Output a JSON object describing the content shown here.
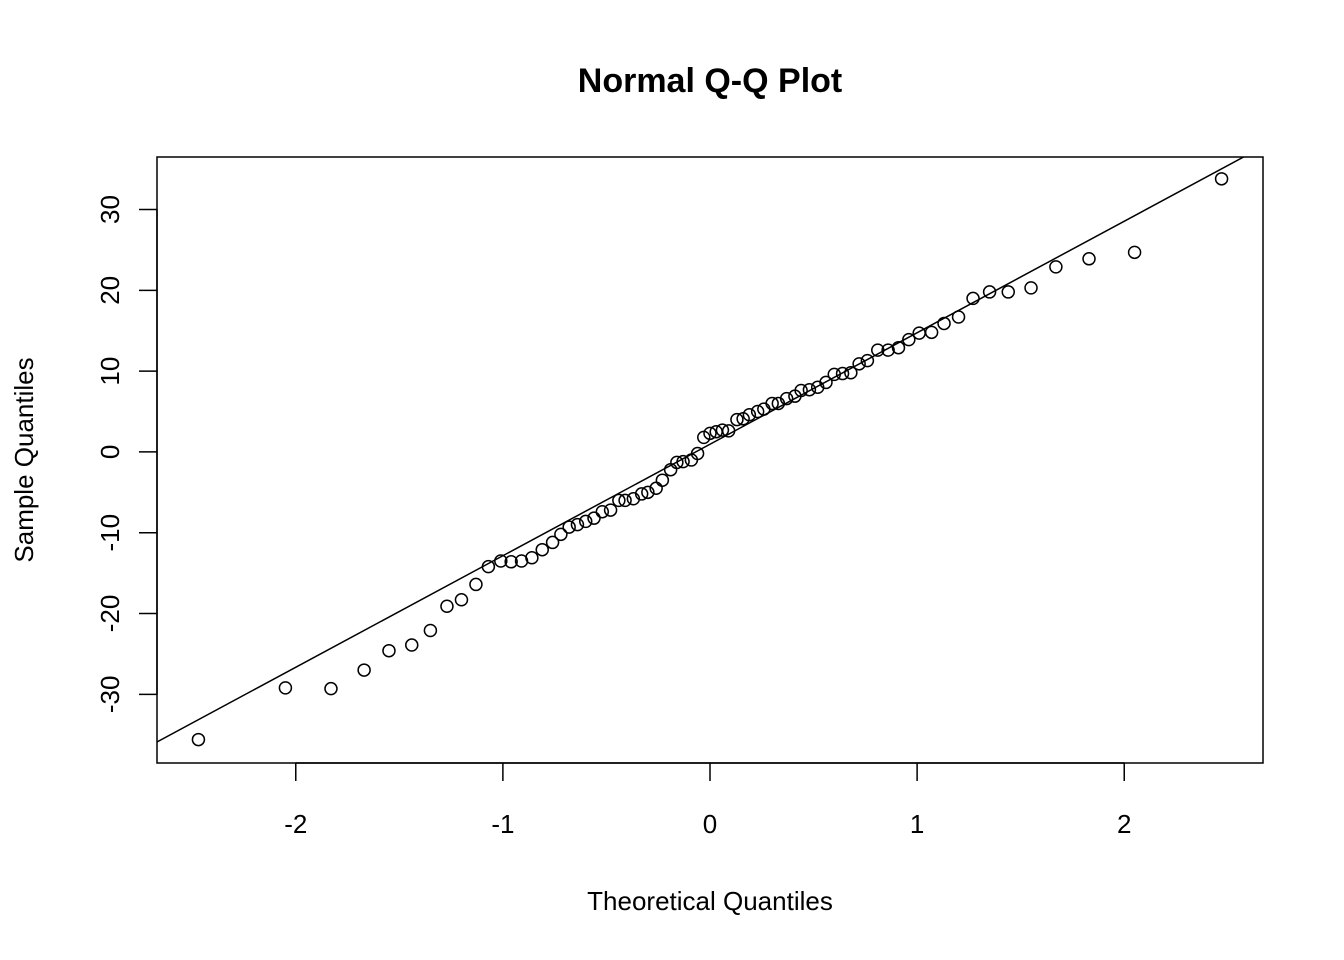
{
  "chart_data": {
    "type": "scatter",
    "title": "Normal Q-Q Plot",
    "xlabel": "Theoretical Quantiles",
    "ylabel": "Sample Quantiles",
    "xlim": [
      -2.67,
      2.67
    ],
    "ylim": [
      -38.5,
      36.5
    ],
    "x_ticks": [
      -2,
      -1,
      0,
      1,
      2
    ],
    "x_tick_labels": [
      "-2",
      "-1",
      "0",
      "1",
      "2"
    ],
    "y_ticks": [
      -30,
      -20,
      -10,
      0,
      10,
      20,
      30
    ],
    "y_tick_labels": [
      "-30",
      "-20",
      "-10",
      "0",
      "10",
      "20",
      "30"
    ],
    "grid": false,
    "reference_line": {
      "intercept": 0.95,
      "slope": 13.8
    },
    "points": [
      [
        -2.47,
        -35.6
      ],
      [
        -2.05,
        -29.2
      ],
      [
        -1.83,
        -29.3
      ],
      [
        -1.67,
        -27.0
      ],
      [
        -1.55,
        -24.6
      ],
      [
        -1.44,
        -23.9
      ],
      [
        -1.35,
        -22.1
      ],
      [
        -1.27,
        -19.1
      ],
      [
        -1.2,
        -18.3
      ],
      [
        -1.13,
        -16.4
      ],
      [
        -1.07,
        -14.2
      ],
      [
        -1.01,
        -13.5
      ],
      [
        -0.96,
        -13.6
      ],
      [
        -0.91,
        -13.5
      ],
      [
        -0.86,
        -13.1
      ],
      [
        -0.81,
        -12.1
      ],
      [
        -0.76,
        -11.2
      ],
      [
        -0.72,
        -10.2
      ],
      [
        -0.68,
        -9.3
      ],
      [
        -0.64,
        -9.0
      ],
      [
        -0.6,
        -8.6
      ],
      [
        -0.56,
        -8.2
      ],
      [
        -0.52,
        -7.4
      ],
      [
        -0.48,
        -7.2
      ],
      [
        -0.44,
        -6.0
      ],
      [
        -0.41,
        -6.0
      ],
      [
        -0.37,
        -5.8
      ],
      [
        -0.33,
        -5.2
      ],
      [
        -0.3,
        -5.0
      ],
      [
        -0.26,
        -4.5
      ],
      [
        -0.23,
        -3.5
      ],
      [
        -0.19,
        -2.2
      ],
      [
        -0.16,
        -1.3
      ],
      [
        -0.13,
        -1.2
      ],
      [
        -0.09,
        -1.0
      ],
      [
        -0.06,
        -0.2
      ],
      [
        -0.03,
        1.8
      ],
      [
        0.0,
        2.3
      ],
      [
        0.03,
        2.5
      ],
      [
        0.06,
        2.7
      ],
      [
        0.09,
        2.6
      ],
      [
        0.13,
        4.0
      ],
      [
        0.16,
        4.1
      ],
      [
        0.19,
        4.6
      ],
      [
        0.23,
        5.0
      ],
      [
        0.26,
        5.3
      ],
      [
        0.3,
        6.0
      ],
      [
        0.33,
        6.0
      ],
      [
        0.37,
        6.6
      ],
      [
        0.41,
        6.9
      ],
      [
        0.44,
        7.6
      ],
      [
        0.48,
        7.7
      ],
      [
        0.52,
        8.0
      ],
      [
        0.56,
        8.6
      ],
      [
        0.6,
        9.6
      ],
      [
        0.64,
        9.7
      ],
      [
        0.68,
        9.8
      ],
      [
        0.72,
        10.9
      ],
      [
        0.76,
        11.3
      ],
      [
        0.81,
        12.6
      ],
      [
        0.86,
        12.6
      ],
      [
        0.91,
        12.9
      ],
      [
        0.96,
        13.9
      ],
      [
        1.01,
        14.7
      ],
      [
        1.07,
        14.8
      ],
      [
        1.13,
        15.9
      ],
      [
        1.2,
        16.7
      ],
      [
        1.27,
        19.0
      ],
      [
        1.35,
        19.8
      ],
      [
        1.44,
        19.8
      ],
      [
        1.55,
        20.3
      ],
      [
        1.67,
        22.9
      ],
      [
        1.83,
        23.9
      ],
      [
        2.05,
        24.7
      ],
      [
        2.47,
        33.8
      ]
    ]
  }
}
